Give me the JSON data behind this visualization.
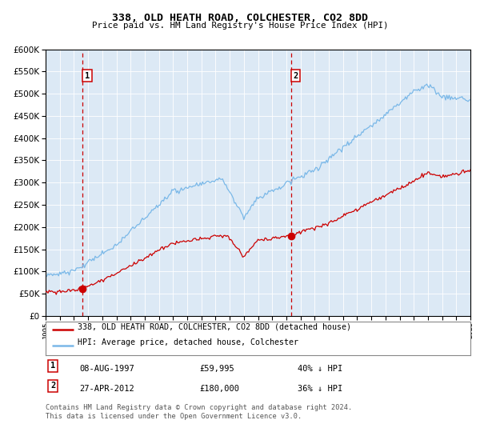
{
  "title": "338, OLD HEATH ROAD, COLCHESTER, CO2 8DD",
  "subtitle": "Price paid vs. HM Land Registry's House Price Index (HPI)",
  "red_label": "338, OLD HEATH ROAD, COLCHESTER, CO2 8DD (detached house)",
  "blue_label": "HPI: Average price, detached house, Colchester",
  "annotation1_date": "08-AUG-1997",
  "annotation1_price": "£59,995",
  "annotation1_pct": "40% ↓ HPI",
  "annotation2_date": "27-APR-2012",
  "annotation2_price": "£180,000",
  "annotation2_pct": "36% ↓ HPI",
  "footer": "Contains HM Land Registry data © Crown copyright and database right 2024.\nThis data is licensed under the Open Government Licence v3.0.",
  "bg_color": "#dce9f5",
  "ylim": [
    0,
    600000
  ],
  "yticks": [
    0,
    50000,
    100000,
    150000,
    200000,
    250000,
    300000,
    350000,
    400000,
    450000,
    500000,
    550000,
    600000
  ],
  "sale1_year": 1997.6,
  "sale1_price": 59995,
  "sale2_year": 2012.32,
  "sale2_price": 180000,
  "xmin": 1995,
  "xmax": 2025
}
